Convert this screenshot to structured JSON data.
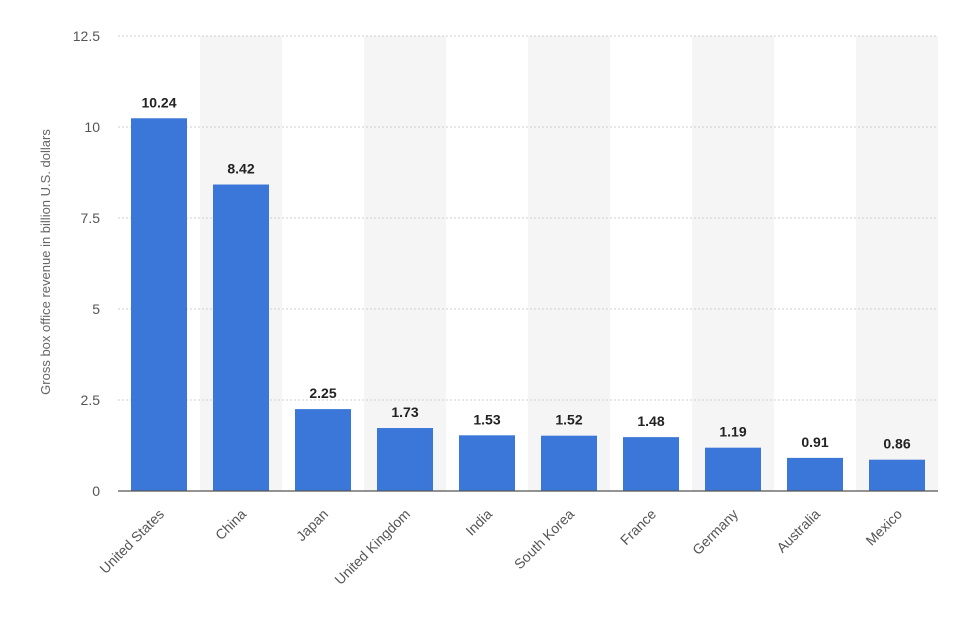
{
  "chart_data": {
    "type": "bar",
    "title": "",
    "xlabel": "",
    "ylabel": "Gross box office revenue in billion U.S. dollars",
    "ylim": [
      0,
      12.5
    ],
    "yticks": [
      "0",
      "2.5",
      "5",
      "7.5",
      "10",
      "12.5"
    ],
    "ytick_values": [
      0,
      2.5,
      5,
      7.5,
      10,
      12.5
    ],
    "categories": [
      "United States",
      "China",
      "Japan",
      "United Kingdom",
      "India",
      "South Korea",
      "France",
      "Germany",
      "Australia",
      "Mexico"
    ],
    "values": [
      10.24,
      8.42,
      2.25,
      1.73,
      1.53,
      1.52,
      1.48,
      1.19,
      0.91,
      0.86
    ],
    "value_labels": [
      "10.24",
      "8.42",
      "2.25",
      "1.73",
      "1.53",
      "1.52",
      "1.48",
      "1.19",
      "0.91",
      "0.86"
    ],
    "bar_color": "#3a77d8",
    "band_color": "#f5f5f5",
    "grid": true
  }
}
